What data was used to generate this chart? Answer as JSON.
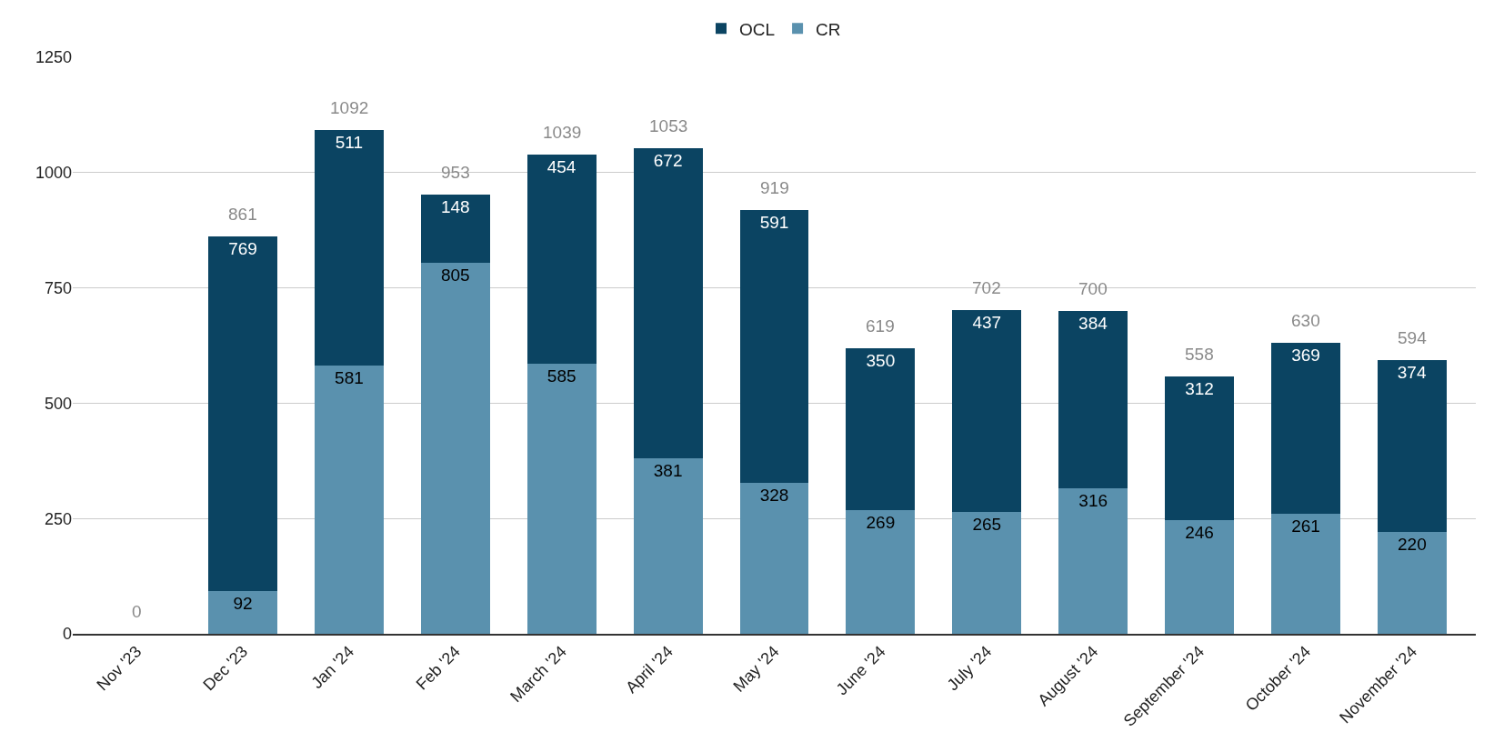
{
  "chart_data": {
    "type": "bar",
    "stacked": true,
    "categories": [
      "Nov '23",
      "Dec '23",
      "Jan '24",
      "Feb '24",
      "March '24",
      "April '24",
      "May '24",
      "June '24",
      "July '24",
      "August '24",
      "September '24",
      "October '24",
      "November '24"
    ],
    "series": [
      {
        "name": "CR",
        "color": "#5a91ae",
        "values": [
          0,
          92,
          581,
          805,
          585,
          381,
          328,
          269,
          265,
          316,
          246,
          261,
          220
        ],
        "value_labels": [
          null,
          "92",
          "581",
          "805",
          "585",
          "381",
          "328",
          "269",
          "265",
          "316",
          "246",
          "261",
          "220"
        ]
      },
      {
        "name": "OCL",
        "color": "#0b4462",
        "values": [
          0,
          769,
          511,
          148,
          454,
          672,
          591,
          350,
          437,
          384,
          312,
          369,
          374
        ],
        "value_labels": [
          null,
          "769",
          "511",
          "148",
          "454",
          "672",
          "591",
          "350",
          "437",
          "384",
          "312",
          "369",
          "374"
        ]
      }
    ],
    "totals": [
      "0",
      "861",
      "1092",
      "953",
      "1039",
      "1053",
      "919",
      "619",
      "702",
      "700",
      "558",
      "630",
      "594"
    ],
    "ylim": [
      0,
      1250
    ],
    "yticks": [
      0,
      250,
      500,
      750,
      1000,
      1250
    ],
    "grid": "y",
    "legend": "top"
  }
}
